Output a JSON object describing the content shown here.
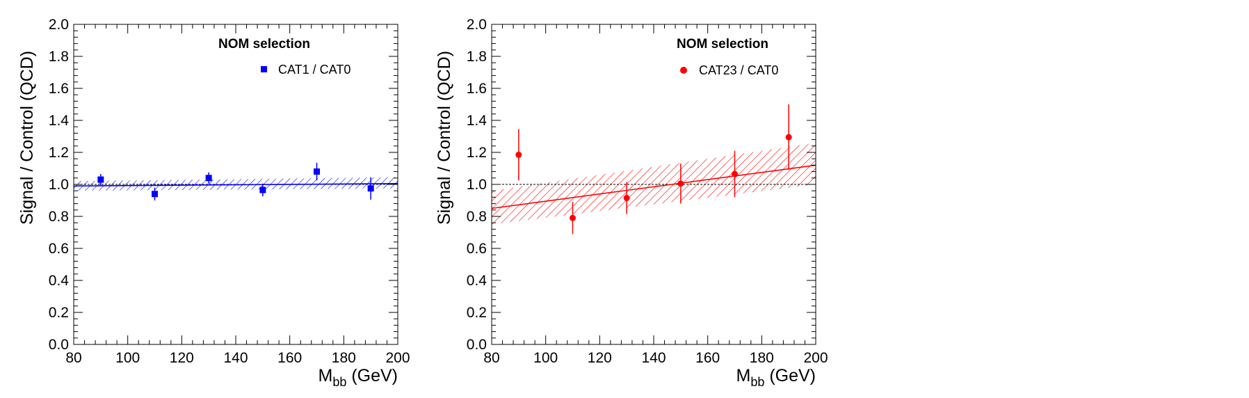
{
  "chart_data": [
    {
      "type": "scatter",
      "title": "",
      "xlabel": "M",
      "xlabel_sub": "bb",
      "xlabel_unit": " (GeV)",
      "ylabel": "Signal / Control (QCD)",
      "xlim": [
        80,
        200
      ],
      "ylim": [
        0,
        2.0
      ],
      "xticks": [
        "80",
        "100",
        "120",
        "140",
        "160",
        "180",
        "200"
      ],
      "yticks": [
        "0.0",
        "0.2",
        "0.4",
        "0.6",
        "0.8",
        "1.0",
        "1.2",
        "1.4",
        "1.6",
        "1.8",
        "2.0"
      ],
      "grid": false,
      "reference_line": 1.0,
      "legend": {
        "header": "NOM selection",
        "placement": "top-right"
      },
      "color": "#0000ff",
      "marker": "square",
      "series": [
        {
          "name": "CAT1 / CAT0",
          "x": [
            90,
            110,
            130,
            150,
            170,
            190
          ],
          "y": [
            1.03,
            0.94,
            1.04,
            0.965,
            1.08,
            0.975
          ],
          "yerr": [
            0.035,
            0.04,
            0.035,
            0.04,
            0.055,
            0.07
          ]
        }
      ],
      "fit": {
        "x": [
          80,
          200
        ],
        "y": [
          0.99,
          1.005
        ],
        "band_lower": [
          0.96,
          0.975
        ],
        "band_upper": [
          1.02,
          1.045
        ]
      }
    },
    {
      "type": "scatter",
      "title": "",
      "xlabel": "M",
      "xlabel_sub": "bb",
      "xlabel_unit": " (GeV)",
      "ylabel": "Signal / Control (QCD)",
      "xlim": [
        80,
        200
      ],
      "ylim": [
        0,
        2.0
      ],
      "xticks": [
        "80",
        "100",
        "120",
        "140",
        "160",
        "180",
        "200"
      ],
      "yticks": [
        "0.0",
        "0.2",
        "0.4",
        "0.6",
        "0.8",
        "1.0",
        "1.2",
        "1.4",
        "1.6",
        "1.8",
        "2.0"
      ],
      "grid": false,
      "reference_line": 1.0,
      "legend": {
        "header": "NOM selection",
        "placement": "top-right"
      },
      "color": "#ff0000",
      "marker": "circle",
      "series": [
        {
          "name": "CAT23 / CAT0",
          "x": [
            90,
            110,
            130,
            150,
            170,
            190
          ],
          "y": [
            1.185,
            0.79,
            0.915,
            1.005,
            1.065,
            1.295
          ],
          "yerr": [
            0.16,
            0.1,
            0.1,
            0.125,
            0.145,
            0.205
          ]
        }
      ],
      "fit": {
        "x": [
          80,
          200
        ],
        "y": [
          0.85,
          1.12
        ],
        "band_lower": [
          0.75,
          1.0
        ],
        "band_upper": [
          0.96,
          1.26
        ]
      }
    }
  ]
}
